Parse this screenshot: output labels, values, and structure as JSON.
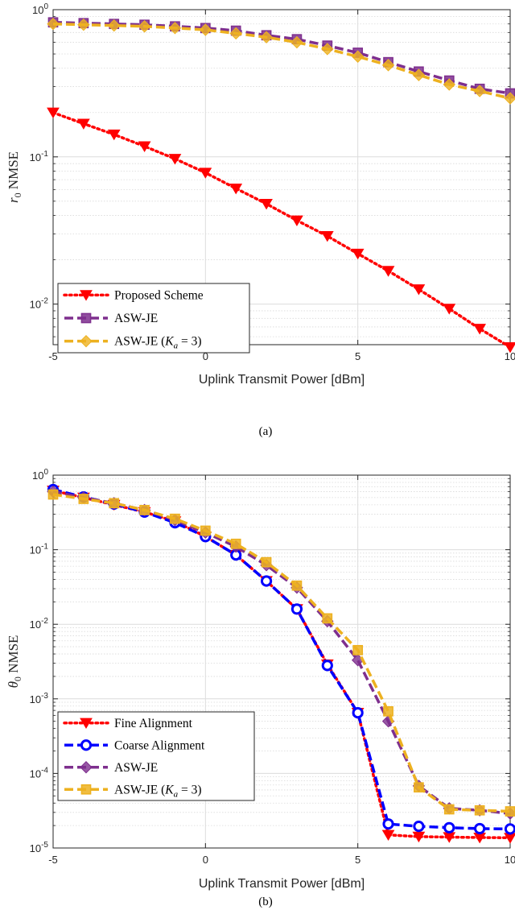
{
  "chart_data": [
    {
      "type": "line",
      "caption": "(a)",
      "xlabel": "Uplink Transmit Power [dBm]",
      "ylabel_var": "r",
      "ylabel_sub": "0",
      "ylabel_text": "NMSE",
      "x_ticks": [
        "-5",
        "0",
        "5",
        "10"
      ],
      "y_ticks": [
        {
          "base": "10",
          "exp": "0",
          "value": 1
        },
        {
          "base": "10",
          "exp": "-1",
          "value": 0.1
        },
        {
          "base": "10",
          "exp": "-2",
          "value": 0.01
        }
      ],
      "xlim": [
        -5,
        10
      ],
      "ylim": [
        0.0053,
        1
      ],
      "yscale": "log",
      "grid": true,
      "legend_position": "bottom-left",
      "x": [
        -5,
        -4,
        -3,
        -2,
        -1,
        0,
        1,
        2,
        3,
        4,
        5,
        6,
        7,
        8,
        9,
        10
      ],
      "series": [
        {
          "name": "Proposed Scheme",
          "color": "#ff0000",
          "dash": "dotted",
          "marker": "triangle-down",
          "values": [
            0.2,
            0.168,
            0.142,
            0.118,
            0.097,
            0.078,
            0.061,
            0.048,
            0.037,
            0.029,
            0.022,
            0.0168,
            0.0126,
            0.0093,
            0.0068,
            0.0051
          ]
        },
        {
          "name": "ASW-JE",
          "color": "#7e2f8e",
          "dash": "dashed",
          "marker": "square",
          "values": [
            0.82,
            0.81,
            0.8,
            0.79,
            0.77,
            0.75,
            0.72,
            0.67,
            0.63,
            0.57,
            0.51,
            0.44,
            0.38,
            0.33,
            0.29,
            0.27
          ]
        },
        {
          "name": "ASW-JE (Ka = 3)",
          "name_base": "ASW-JE (",
          "name_math": "K",
          "name_sub": "a",
          "name_rest": " = 3)",
          "color": "#edb120",
          "dash": "dashed",
          "marker": "diamond",
          "values": [
            0.8,
            0.79,
            0.78,
            0.77,
            0.75,
            0.73,
            0.69,
            0.65,
            0.6,
            0.54,
            0.48,
            0.42,
            0.36,
            0.31,
            0.28,
            0.25
          ]
        }
      ]
    },
    {
      "type": "line",
      "caption": "(b)",
      "xlabel": "Uplink Transmit Power [dBm]",
      "ylabel_var": "θ",
      "ylabel_sub": "0",
      "ylabel_text": "NMSE",
      "x_ticks": [
        "-5",
        "0",
        "5",
        "10"
      ],
      "y_ticks": [
        {
          "base": "10",
          "exp": "0",
          "value": 1
        },
        {
          "base": "10",
          "exp": "-1",
          "value": 0.1
        },
        {
          "base": "10",
          "exp": "-2",
          "value": 0.01
        },
        {
          "base": "10",
          "exp": "-3",
          "value": 0.001
        },
        {
          "base": "10",
          "exp": "-4",
          "value": 0.0001
        },
        {
          "base": "10",
          "exp": "-5",
          "value": 1e-05
        }
      ],
      "xlim": [
        -5,
        10
      ],
      "ylim": [
        1e-05,
        1
      ],
      "yscale": "log",
      "grid": true,
      "legend_position": "bottom-left",
      "x": [
        -5,
        -4,
        -3,
        -2,
        -1,
        0,
        1,
        2,
        3,
        4,
        5,
        6,
        7,
        8,
        9,
        10
      ],
      "series": [
        {
          "name": "Fine Alignment",
          "color": "#ff0000",
          "dash": "dotted",
          "marker": "triangle-down",
          "values": [
            0.62,
            0.5,
            0.4,
            0.32,
            0.24,
            0.15,
            0.085,
            0.038,
            0.016,
            0.0029,
            0.00065,
            1.5e-05,
            1.42e-05,
            1.4e-05,
            1.38e-05,
            1.37e-05
          ]
        },
        {
          "name": "Coarse Alignment",
          "color": "#0000ff",
          "dash": "dashed",
          "marker": "circle",
          "values": [
            0.64,
            0.51,
            0.41,
            0.32,
            0.23,
            0.15,
            0.085,
            0.038,
            0.016,
            0.0028,
            0.00065,
            2.1e-05,
            1.95e-05,
            1.87e-05,
            1.82e-05,
            1.8e-05
          ]
        },
        {
          "name": "ASW-JE",
          "color": "#7e2f8e",
          "dash": "dashed",
          "marker": "diamond",
          "values": [
            0.6,
            0.5,
            0.42,
            0.34,
            0.25,
            0.17,
            0.11,
            0.062,
            0.031,
            0.011,
            0.0033,
            0.0005,
            6.8e-05,
            3.4e-05,
            3.2e-05,
            2.9e-05
          ]
        },
        {
          "name": "ASW-JE (Ka = 3)",
          "name_base": "ASW-JE (",
          "name_math": "K",
          "name_sub": "a",
          "name_rest": " = 3)",
          "color": "#edb120",
          "dash": "dashed",
          "marker": "square",
          "values": [
            0.55,
            0.48,
            0.42,
            0.34,
            0.26,
            0.18,
            0.12,
            0.068,
            0.033,
            0.012,
            0.0045,
            0.00068,
            6.5e-05,
            3.3e-05,
            3.2e-05,
            3.1e-05
          ]
        }
      ]
    }
  ]
}
